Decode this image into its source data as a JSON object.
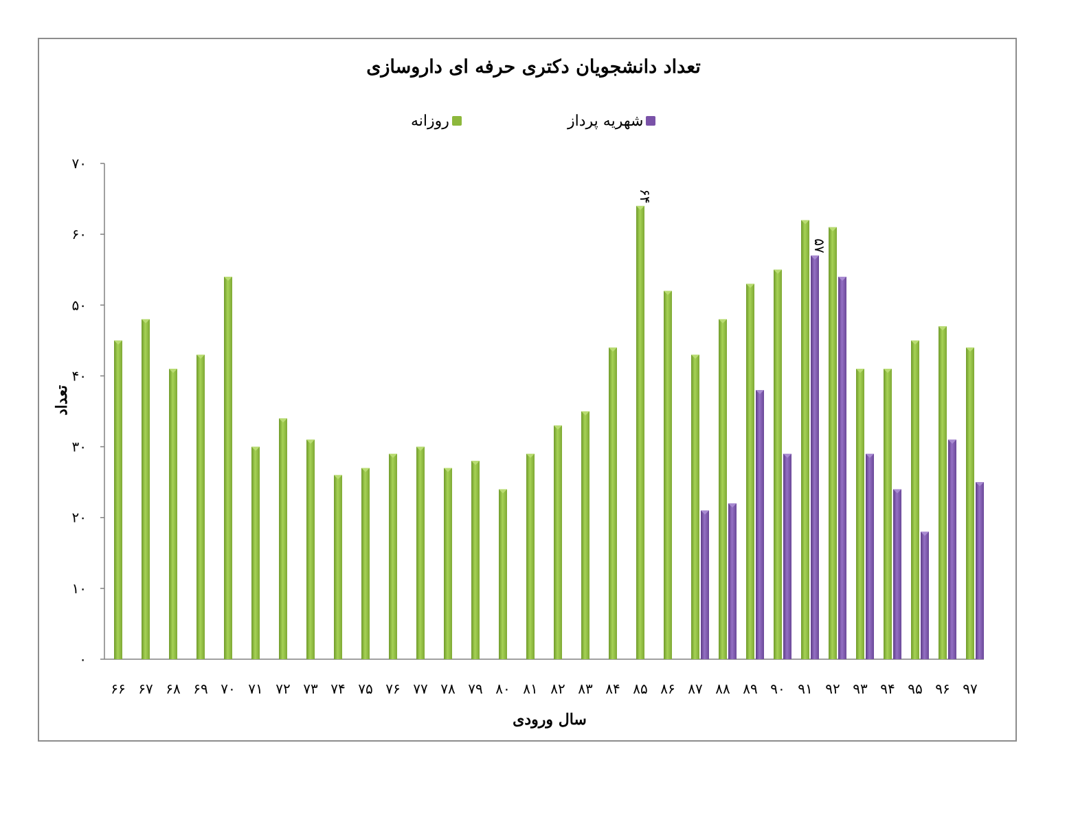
{
  "chart_data": {
    "type": "bar",
    "title": "تعداد دانشجویان دکتری حرفه ای داروسازی",
    "xlabel": "سال ورودی",
    "ylabel": "تعداد",
    "ylim": [
      0,
      70
    ],
    "yticks": [
      "۰",
      "۱۰",
      "۲۰",
      "۳۰",
      "۴۰",
      "۵۰",
      "۶۰",
      "۷۰"
    ],
    "categories": [
      "۶۶",
      "۶۷",
      "۶۸",
      "۶۹",
      "۷۰",
      "۷۱",
      "۷۲",
      "۷۳",
      "۷۴",
      "۷۵",
      "۷۶",
      "۷۷",
      "۷۸",
      "۷۹",
      "۸۰",
      "۸۱",
      "۸۲",
      "۸۳",
      "۸۴",
      "۸۵",
      "۸۶",
      "۸۷",
      "۸۸",
      "۸۹",
      "۹۰",
      "۹۱",
      "۹۲",
      "۹۳",
      "۹۴",
      "۹۵",
      "۹۶",
      "۹۷"
    ],
    "series": [
      {
        "name": "روزانه",
        "color": "#8db83c",
        "values": [
          45,
          48,
          41,
          43,
          54,
          30,
          34,
          31,
          26,
          27,
          29,
          30,
          27,
          28,
          24,
          29,
          33,
          35,
          44,
          64,
          52,
          43,
          48,
          53,
          55,
          62,
          61,
          41,
          41,
          45,
          47,
          44
        ],
        "data_labels": [
          {
            "index": 19,
            "text": "۶۴"
          }
        ]
      },
      {
        "name": "شهریه پرداز",
        "color": "#7a52a8",
        "values": [
          null,
          null,
          null,
          null,
          null,
          null,
          null,
          null,
          null,
          null,
          null,
          null,
          null,
          null,
          null,
          null,
          null,
          null,
          null,
          null,
          null,
          21,
          22,
          38,
          29,
          57,
          54,
          29,
          24,
          18,
          31,
          25
        ],
        "data_labels": [
          {
            "index": 25,
            "text": "۵۷"
          }
        ]
      }
    ],
    "legend_position": "top",
    "grid": false
  }
}
